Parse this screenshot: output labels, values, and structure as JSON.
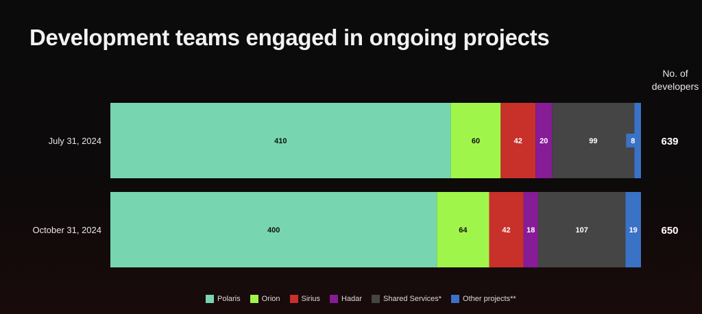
{
  "chart_data": {
    "type": "bar",
    "orientation": "horizontal",
    "stacked": true,
    "normalized": true,
    "title": "Development teams engaged in ongoing projects",
    "total_header": [
      "No. of",
      "developers"
    ],
    "categories": [
      "July 31, 2024",
      "October 31, 2024"
    ],
    "series": [
      {
        "name": "Polaris",
        "color": "#77d6b0",
        "label_color": "#111111",
        "values": [
          410,
          400
        ]
      },
      {
        "name": "Orion",
        "color": "#a0f54a",
        "label_color": "#111111",
        "values": [
          60,
          64
        ]
      },
      {
        "name": "Sirius",
        "color": "#c8302a",
        "label_color": "#ffffff",
        "values": [
          42,
          42
        ]
      },
      {
        "name": "Hadar",
        "color": "#861c96",
        "label_color": "#ffffff",
        "values": [
          20,
          18
        ]
      },
      {
        "name": "Shared Services*",
        "color": "#454545",
        "label_color": "#ffffff",
        "values": [
          99,
          107
        ]
      },
      {
        "name": "Other projects**",
        "color": "#3a72c6",
        "label_color": "#ffffff",
        "values": [
          8,
          19
        ]
      }
    ],
    "totals": [
      639,
      650
    ],
    "legend": "bottom",
    "grid": false
  }
}
